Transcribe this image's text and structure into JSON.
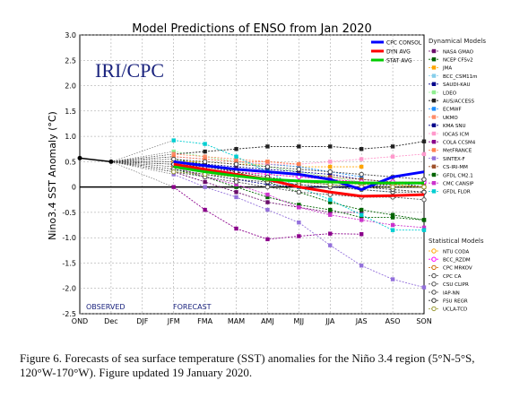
{
  "chart_data": {
    "type": "line",
    "title": "Model Predictions of ENSO from Jan 2020",
    "watermark": "IRI/CPC",
    "ylabel": "Nino3.4 SST Anomaly (°C)",
    "ylim": [
      -2.5,
      3.0
    ],
    "yticks": [
      "3.0",
      "2.5",
      "2.0",
      "1.5",
      "1.0",
      "0.5",
      "0",
      "-0.5",
      "-1.0",
      "-1.5",
      "-2.0",
      "-2.5"
    ],
    "ytick_values": [
      3.0,
      2.5,
      2.0,
      1.5,
      1.0,
      0.5,
      0,
      -0.5,
      -1.0,
      -1.5,
      -2.0,
      -2.5
    ],
    "categories": [
      "OND",
      "Dec",
      "DJF",
      "JFM",
      "FMA",
      "MAM",
      "AMJ",
      "MJJ",
      "JJA",
      "JAS",
      "ASO",
      "SON"
    ],
    "observed_label": "OBSERVED",
    "forecast_label": "FORECAST",
    "observed": [
      0.57,
      0.5
    ],
    "averages": [
      {
        "name": "CPC CONSOL",
        "color": "#0000ff",
        "values": [
          null,
          null,
          null,
          0.5,
          0.42,
          0.35,
          0.3,
          0.25,
          0.15,
          -0.05,
          0.2,
          0.3
        ]
      },
      {
        "name": "DYN AVG",
        "color": "#ff0000",
        "values": [
          null,
          null,
          null,
          0.45,
          0.35,
          0.25,
          0.15,
          0.0,
          -0.1,
          -0.18,
          -0.17,
          -0.15
        ]
      },
      {
        "name": "STAT AVG",
        "color": "#00cc00",
        "values": [
          null,
          null,
          null,
          0.4,
          0.3,
          0.22,
          0.15,
          0.12,
          0.1,
          0.08,
          0.08,
          0.08
        ]
      }
    ],
    "dynamical_title": "Dynamical Models",
    "dynamical": [
      {
        "name": "NASA GMAO",
        "color": "#6a0d6a",
        "values": [
          null,
          null,
          null,
          0.3,
          0.1,
          -0.1,
          -0.3,
          -0.4,
          -0.5,
          -0.5,
          null,
          null
        ]
      },
      {
        "name": "NCEP CFSv2",
        "color": "#006400",
        "values": [
          null,
          null,
          null,
          0.55,
          0.45,
          0.3,
          0.1,
          -0.1,
          -0.3,
          -0.45,
          -0.55,
          -0.65
        ]
      },
      {
        "name": "JMA",
        "color": "#ffa500",
        "values": [
          null,
          null,
          null,
          0.5,
          0.5,
          0.45,
          0.45,
          0.4,
          0.4,
          0.4,
          null,
          null
        ]
      },
      {
        "name": "BCC_CSM11m",
        "color": "#87ceeb",
        "values": [
          null,
          null,
          null,
          0.45,
          0.35,
          0.25,
          0.15,
          0.05,
          0.0,
          -0.05,
          -0.1,
          null
        ]
      },
      {
        "name": "SAUDI-KAU",
        "color": "#00008b",
        "values": [
          null,
          null,
          null,
          0.35,
          0.25,
          0.15,
          0.05,
          0.0,
          0.0,
          0.0,
          0.05,
          0.1
        ]
      },
      {
        "name": "LDEO",
        "color": "#90ee90",
        "values": [
          null,
          null,
          null,
          0.7,
          0.6,
          0.5,
          0.4,
          0.3,
          0.2,
          0.1,
          0.05,
          0.0
        ]
      },
      {
        "name": "AUS/ACCESS",
        "color": "#222222",
        "values": [
          null,
          null,
          null,
          0.65,
          0.7,
          0.75,
          0.8,
          0.8,
          0.8,
          0.75,
          0.8,
          0.9
        ]
      },
      {
        "name": "ECMWF",
        "color": "#1e90ff",
        "values": [
          null,
          null,
          null,
          0.6,
          0.55,
          0.5,
          0.45,
          0.4,
          0.3,
          0.2,
          null,
          null
        ]
      },
      {
        "name": "UKMO",
        "color": "#ff8c69",
        "values": [
          null,
          null,
          null,
          0.65,
          0.6,
          0.55,
          0.5,
          0.45,
          null,
          null,
          null,
          null
        ]
      },
      {
        "name": "KMA SNU",
        "color": "#00008b",
        "values": [
          null,
          null,
          null,
          0.5,
          0.45,
          0.4,
          0.35,
          0.3,
          0.25,
          0.15,
          0.1,
          0.0
        ]
      },
      {
        "name": "IOCAS ICM",
        "color": "#ff99cc",
        "values": [
          null,
          null,
          null,
          0.6,
          0.55,
          0.5,
          0.45,
          0.45,
          0.5,
          0.55,
          0.6,
          0.65
        ]
      },
      {
        "name": "COLA CCSM4",
        "color": "#8b008b",
        "values": [
          null,
          null,
          null,
          0.0,
          -0.45,
          -0.82,
          -1.03,
          -0.97,
          -0.92,
          -0.93,
          null,
          null
        ]
      },
      {
        "name": "MetFRANCE",
        "color": "#ff7f50",
        "values": [
          null,
          null,
          null,
          0.6,
          0.55,
          0.5,
          0.5,
          0.45,
          null,
          null,
          null,
          null
        ]
      },
      {
        "name": "SINTEX-F",
        "color": "#9370db",
        "values": [
          null,
          null,
          null,
          0.25,
          0.0,
          -0.2,
          -0.45,
          -0.7,
          -1.15,
          -1.55,
          -1.82,
          -1.98
        ]
      },
      {
        "name": "CS-IRI-MM",
        "color": "#a0522d",
        "values": [
          null,
          null,
          null,
          0.45,
          0.4,
          0.35,
          0.3,
          0.25,
          0.2,
          0.15,
          0.1,
          0.05
        ]
      },
      {
        "name": "GFDL CM2.1",
        "color": "#006400",
        "values": [
          null,
          null,
          null,
          0.35,
          0.2,
          0.0,
          -0.2,
          -0.35,
          -0.45,
          -0.6,
          -0.6,
          -0.65
        ]
      },
      {
        "name": "CMC CANSIP",
        "color": "#cc33cc",
        "values": [
          null,
          null,
          null,
          0.4,
          0.2,
          0.05,
          -0.15,
          -0.4,
          -0.55,
          -0.65,
          -0.75,
          -0.8
        ]
      },
      {
        "name": "GFDL FLOR",
        "color": "#00ced1",
        "values": [
          null,
          null,
          null,
          0.92,
          0.85,
          0.6,
          0.3,
          0.0,
          -0.25,
          -0.55,
          -0.85,
          -0.85
        ]
      }
    ],
    "statistical_title": "Statistical Models",
    "statistical": [
      {
        "name": "NTU CODA",
        "color": "#ffa500",
        "values": [
          null,
          null,
          null,
          0.5,
          0.4,
          0.3,
          0.25,
          0.2,
          0.15,
          0.1,
          0.05,
          0.0
        ]
      },
      {
        "name": "BCC_RZDM",
        "color": "#ff00ff",
        "values": [
          null,
          null,
          null,
          0.45,
          0.35,
          0.3,
          0.25,
          0.2,
          0.15,
          0.1,
          0.1,
          0.1
        ]
      },
      {
        "name": "CPC MRKOV",
        "color": "#cc6600",
        "values": [
          null,
          null,
          null,
          0.4,
          0.3,
          0.2,
          0.15,
          0.1,
          0.1,
          0.05,
          0.05,
          0.0
        ]
      },
      {
        "name": "CPC CA",
        "color": "#444444",
        "values": [
          null,
          null,
          null,
          0.35,
          0.25,
          0.15,
          0.1,
          0.05,
          0.0,
          -0.05,
          -0.1,
          -0.1
        ]
      },
      {
        "name": "CSU CLIPR",
        "color": "#555555",
        "values": [
          null,
          null,
          null,
          0.3,
          0.2,
          0.1,
          0.0,
          -0.1,
          -0.15,
          -0.2,
          -0.2,
          -0.25
        ]
      },
      {
        "name": "IAP-NN",
        "color": "#444444",
        "values": [
          null,
          null,
          null,
          0.55,
          0.5,
          0.45,
          0.4,
          0.35,
          0.3,
          0.25,
          0.2,
          0.15
        ]
      },
      {
        "name": "FSU REGR",
        "color": "#333333",
        "values": [
          null,
          null,
          null,
          0.45,
          0.4,
          0.3,
          0.2,
          0.1,
          0.05,
          0.0,
          -0.05,
          -0.1
        ]
      },
      {
        "name": "UCLA-TCD",
        "color": "#999933",
        "values": [
          null,
          null,
          null,
          0.3,
          0.25,
          0.2,
          0.15,
          0.1,
          0.05,
          0.0,
          0.0,
          0.0
        ]
      }
    ]
  },
  "caption": "Figure 6. Forecasts of sea surface temperature (SST) anomalies for the Niño 3.4 region (5°N-5°S, 120°W-170°W). Figure updated 19 January 2020."
}
